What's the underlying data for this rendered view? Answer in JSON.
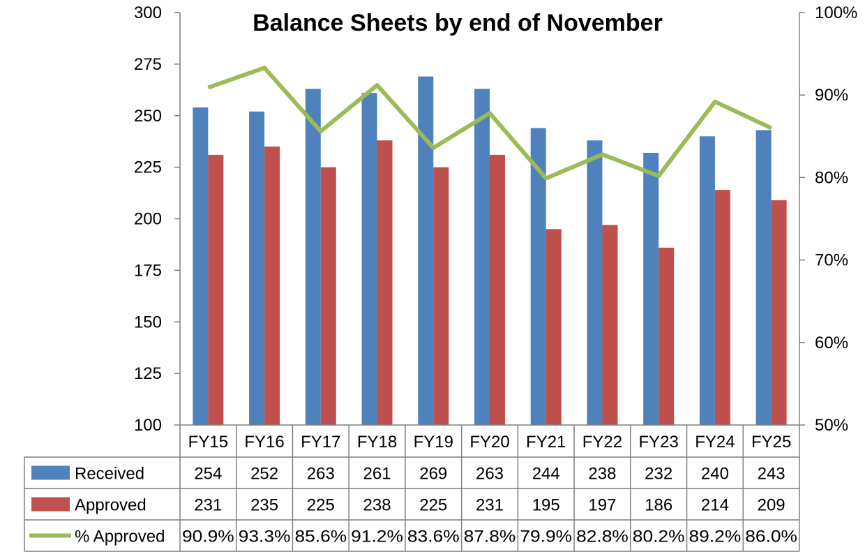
{
  "chart_data": {
    "type": "bar",
    "title": "Balance Sheets by end of November",
    "categories": [
      "FY15",
      "FY16",
      "FY17",
      "FY18",
      "FY19",
      "FY20",
      "FY21",
      "FY22",
      "FY23",
      "FY24",
      "FY25"
    ],
    "series": [
      {
        "name": "Received",
        "type": "bar",
        "axis": "left",
        "color": "#4F81BD",
        "values": [
          254,
          252,
          263,
          261,
          269,
          263,
          244,
          238,
          232,
          240,
          243
        ]
      },
      {
        "name": "Approved",
        "type": "bar",
        "axis": "left",
        "color": "#C0504D",
        "values": [
          231,
          235,
          225,
          238,
          225,
          231,
          195,
          197,
          186,
          214,
          209
        ]
      },
      {
        "name": "% Approved",
        "type": "line",
        "axis": "right",
        "color": "#9BBB59",
        "values": [
          90.9,
          93.3,
          85.6,
          91.2,
          83.6,
          87.8,
          79.9,
          82.8,
          80.2,
          89.2,
          86.0
        ],
        "labels": [
          "90.9%",
          "93.3%",
          "85.6%",
          "91.2%",
          "83.6%",
          "87.8%",
          "79.9%",
          "82.8%",
          "80.2%",
          "89.2%",
          "86.0%"
        ]
      }
    ],
    "ylim": [
      100,
      300
    ],
    "yticks": [
      "100",
      "125",
      "150",
      "175",
      "200",
      "225",
      "250",
      "275",
      "300"
    ],
    "y2lim": [
      50,
      100
    ],
    "y2ticks": [
      "50%",
      "60%",
      "70%",
      "80%",
      "90%",
      "100%"
    ],
    "grid": false,
    "legend": "data-table",
    "xlabel": "",
    "ylabel": ""
  }
}
